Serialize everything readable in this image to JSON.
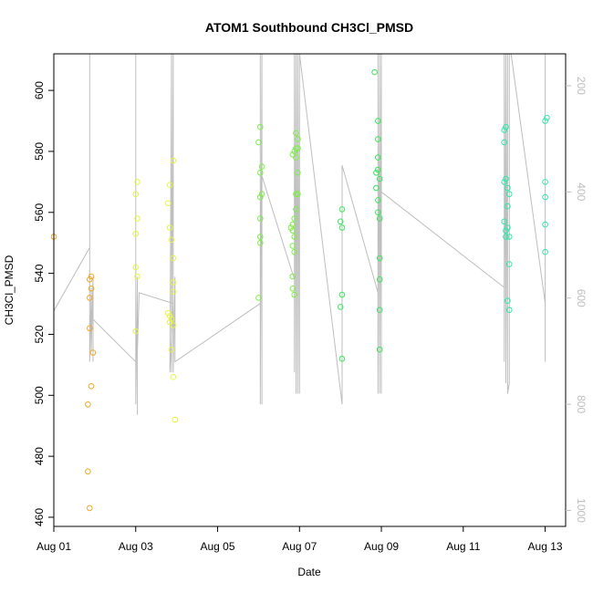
{
  "chart_data": {
    "type": "scatter",
    "title": "ATOM1 Southbound CH3Cl_PMSD",
    "xlabel": "Date",
    "ylabel": "CH3Cl_PMSD",
    "xlim": [
      "2016-08-01T00:00",
      "2016-08-13T12:00"
    ],
    "ylim": [
      457,
      612
    ],
    "y2lim": [
      1030,
      140
    ],
    "x_ticks": [
      {
        "date": "2016-08-01",
        "label": "Aug 01"
      },
      {
        "date": "2016-08-03",
        "label": "Aug 03"
      },
      {
        "date": "2016-08-05",
        "label": "Aug 05"
      },
      {
        "date": "2016-08-07",
        "label": "Aug 07"
      },
      {
        "date": "2016-08-09",
        "label": "Aug 09"
      },
      {
        "date": "2016-08-11",
        "label": "Aug 11"
      },
      {
        "date": "2016-08-13",
        "label": "Aug 13"
      }
    ],
    "y_ticks": [
      460,
      480,
      500,
      520,
      540,
      560,
      580,
      600
    ],
    "y2_ticks": [
      200,
      400,
      600,
      800,
      1000
    ],
    "right_axis_color": "#bebebe",
    "line_color": "#bebebe",
    "grid": false,
    "series": [
      {
        "color": "#f5a623",
        "points": [
          [
            "2016-08-01T00:00",
            552
          ],
          [
            "2016-08-01T21:00",
            538
          ],
          [
            "2016-08-01T22:00",
            539
          ],
          [
            "2016-08-01T22:00",
            535
          ],
          [
            "2016-08-01T21:00",
            532
          ],
          [
            "2016-08-01T21:00",
            522
          ],
          [
            "2016-08-01T23:00",
            514
          ],
          [
            "2016-08-01T22:00",
            503
          ],
          [
            "2016-08-01T20:00",
            497
          ],
          [
            "2016-08-01T20:00",
            475
          ],
          [
            "2016-08-01T21:00",
            463
          ]
        ]
      },
      {
        "color": "#e6f542",
        "points": [
          [
            "2016-08-03T01:00",
            570
          ],
          [
            "2016-08-03T00:00",
            566
          ],
          [
            "2016-08-03T01:00",
            558
          ],
          [
            "2016-08-03T00:00",
            553
          ],
          [
            "2016-08-03T00:00",
            542
          ],
          [
            "2016-08-03T01:00",
            539
          ],
          [
            "2016-08-03T00:00",
            521
          ],
          [
            "2016-08-03T20:00",
            569
          ],
          [
            "2016-08-03T19:00",
            563
          ],
          [
            "2016-08-03T20:00",
            555
          ],
          [
            "2016-08-03T21:00",
            551
          ],
          [
            "2016-08-03T22:00",
            545
          ],
          [
            "2016-08-03T22:00",
            537
          ],
          [
            "2016-08-03T22:00",
            534
          ],
          [
            "2016-08-03T19:00",
            527
          ],
          [
            "2016-08-03T20:00",
            526
          ],
          [
            "2016-08-03T21:00",
            525
          ],
          [
            "2016-08-03T20:00",
            524
          ],
          [
            "2016-08-03T22:00",
            523
          ],
          [
            "2016-08-03T22:00",
            577
          ],
          [
            "2016-08-03T21:00",
            515
          ],
          [
            "2016-08-03T22:00",
            506
          ],
          [
            "2016-08-03T23:00",
            492
          ]
        ]
      },
      {
        "color": "#7dee48",
        "points": [
          [
            "2016-08-06T00:00",
            583
          ],
          [
            "2016-08-06T01:00",
            588
          ],
          [
            "2016-08-06T02:00",
            575
          ],
          [
            "2016-08-06T01:00",
            573
          ],
          [
            "2016-08-06T02:00",
            566
          ],
          [
            "2016-08-06T01:00",
            565
          ],
          [
            "2016-08-06T01:00",
            558
          ],
          [
            "2016-08-06T01:00",
            552
          ],
          [
            "2016-08-06T01:00",
            550
          ],
          [
            "2016-08-06T00:00",
            532
          ],
          [
            "2016-08-06T20:00",
            539
          ],
          [
            "2016-08-06T20:00",
            549
          ],
          [
            "2016-08-06T19:00",
            555
          ],
          [
            "2016-08-06T20:00",
            556
          ],
          [
            "2016-08-06T21:00",
            558
          ],
          [
            "2016-08-06T20:00",
            554
          ],
          [
            "2016-08-06T21:00",
            552
          ],
          [
            "2016-08-06T21:00",
            547
          ],
          [
            "2016-08-06T20:00",
            535
          ],
          [
            "2016-08-06T21:00",
            533
          ],
          [
            "2016-08-06T20:00",
            579
          ],
          [
            "2016-08-06T21:00",
            580
          ],
          [
            "2016-08-06T22:00",
            581
          ],
          [
            "2016-08-06T23:00",
            581
          ],
          [
            "2016-08-06T22:00",
            586
          ],
          [
            "2016-08-06T23:00",
            584
          ],
          [
            "2016-08-06T22:00",
            578
          ],
          [
            "2016-08-06T23:00",
            573
          ],
          [
            "2016-08-06T22:00",
            566
          ],
          [
            "2016-08-06T23:00",
            566
          ],
          [
            "2016-08-06T22:00",
            561
          ]
        ]
      },
      {
        "color": "#39e65b",
        "points": [
          [
            "2016-08-08T01:00",
            561
          ],
          [
            "2016-08-08T00:00",
            557
          ],
          [
            "2016-08-08T01:00",
            555
          ],
          [
            "2016-08-08T01:00",
            533
          ],
          [
            "2016-08-08T00:00",
            529
          ],
          [
            "2016-08-08T01:00",
            512
          ],
          [
            "2016-08-08T20:00",
            606
          ],
          [
            "2016-08-08T22:00",
            590
          ],
          [
            "2016-08-08T22:00",
            584
          ],
          [
            "2016-08-08T22:00",
            578
          ],
          [
            "2016-08-08T22:00",
            574
          ],
          [
            "2016-08-08T21:00",
            573
          ],
          [
            "2016-08-08T23:00",
            571
          ],
          [
            "2016-08-08T21:00",
            568
          ],
          [
            "2016-08-08T22:00",
            564
          ],
          [
            "2016-08-08T22:00",
            560
          ],
          [
            "2016-08-08T23:00",
            558
          ],
          [
            "2016-08-08T23:00",
            545
          ],
          [
            "2016-08-08T23:00",
            538
          ],
          [
            "2016-08-08T23:00",
            528
          ],
          [
            "2016-08-08T23:00",
            515
          ]
        ]
      },
      {
        "color": "#2ee8a8",
        "points": [
          [
            "2016-08-12T00:00",
            587
          ],
          [
            "2016-08-12T01:00",
            588
          ],
          [
            "2016-08-12T00:00",
            583
          ],
          [
            "2016-08-12T00:00",
            570
          ],
          [
            "2016-08-12T01:00",
            571
          ],
          [
            "2016-08-12T02:00",
            568
          ],
          [
            "2016-08-12T03:00",
            566
          ],
          [
            "2016-08-12T02:00",
            562
          ],
          [
            "2016-08-12T00:00",
            557
          ],
          [
            "2016-08-12T02:00",
            555
          ],
          [
            "2016-08-12T01:00",
            554
          ],
          [
            "2016-08-12T01:00",
            552
          ],
          [
            "2016-08-12T03:00",
            552
          ],
          [
            "2016-08-12T03:00",
            543
          ],
          [
            "2016-08-12T02:00",
            531
          ],
          [
            "2016-08-12T03:00",
            528
          ],
          [
            "2016-08-13T00:00",
            590
          ],
          [
            "2016-08-13T01:00",
            591
          ],
          [
            "2016-08-13T00:00",
            570
          ],
          [
            "2016-08-13T00:00",
            565
          ],
          [
            "2016-08-13T00:00",
            556
          ],
          [
            "2016-08-13T00:00",
            547
          ]
        ]
      }
    ],
    "track_lines": [
      [
        [
          "2016-08-01T00:00",
          624
        ],
        [
          "2016-08-01T21:00",
          505
        ],
        [
          "2016-08-01T21:00",
          140
        ],
        [
          "2016-08-01T21:00",
          720
        ],
        [
          "2016-08-01T22:00",
          580
        ],
        [
          "2016-08-01T22:00",
          700
        ],
        [
          "2016-08-01T23:00",
          560
        ],
        [
          "2016-08-01T23:00",
          720
        ],
        [
          "2016-08-01T23:00",
          640
        ],
        [
          "2016-08-03T00:00",
          720
        ],
        [
          "2016-08-03T00:00",
          140
        ],
        [
          "2016-08-03T00:00",
          800
        ],
        [
          "2016-08-03T01:00",
          560
        ],
        [
          "2016-08-03T01:00",
          820
        ],
        [
          "2016-08-03T01:00",
          700
        ],
        [
          "2016-08-03T02:00",
          590
        ],
        [
          "2016-08-03T22:00",
          610
        ],
        [
          "2016-08-03T20:00",
          740
        ],
        [
          "2016-08-03T21:00",
          140
        ],
        [
          "2016-08-03T21:00",
          740
        ],
        [
          "2016-08-03T22:00",
          140
        ],
        [
          "2016-08-03T22:00",
          740
        ],
        [
          "2016-08-03T23:00",
          560
        ],
        [
          "2016-08-03T23:00",
          720
        ],
        [
          "2016-08-06T01:00",
          610
        ],
        [
          "2016-08-06T01:00",
          140
        ],
        [
          "2016-08-06T01:00",
          800
        ],
        [
          "2016-08-06T02:00",
          140
        ],
        [
          "2016-08-06T02:00",
          800
        ],
        [
          "2016-08-06T02:00",
          370
        ],
        [
          "2016-08-06T21:00",
          565
        ],
        [
          "2016-08-06T21:00",
          140
        ],
        [
          "2016-08-06T21:00",
          740
        ],
        [
          "2016-08-06T22:00",
          140
        ],
        [
          "2016-08-06T22:00",
          780
        ],
        [
          "2016-08-06T23:00",
          140
        ],
        [
          "2016-08-06T23:00",
          780
        ],
        [
          "2016-08-06T23:00",
          140
        ],
        [
          "2016-08-07T00:00",
          780
        ],
        [
          "2016-08-07T00:00",
          140
        ],
        [
          "2016-08-08T01:00",
          800
        ],
        [
          "2016-08-08T01:00",
          350
        ],
        [
          "2016-08-08T22:00",
          590
        ],
        [
          "2016-08-08T22:00",
          140
        ],
        [
          "2016-08-08T22:00",
          780
        ],
        [
          "2016-08-08T23:00",
          140
        ],
        [
          "2016-08-08T23:00",
          780
        ],
        [
          "2016-08-09T00:00",
          140
        ],
        [
          "2016-08-09T00:00",
          780
        ],
        [
          "2016-08-09T00:00",
          400
        ],
        [
          "2016-08-12T00:00",
          580
        ],
        [
          "2016-08-12T00:00",
          140
        ],
        [
          "2016-08-12T00:00",
          720
        ],
        [
          "2016-08-12T01:00",
          140
        ],
        [
          "2016-08-12T01:00",
          760
        ],
        [
          "2016-08-12T02:00",
          140
        ],
        [
          "2016-08-12T02:00",
          780
        ],
        [
          "2016-08-12T03:00",
          760
        ],
        [
          "2016-08-12T03:00",
          140
        ],
        [
          "2016-08-12T04:00",
          140
        ],
        [
          "2016-08-13T00:00",
          610
        ],
        [
          "2016-08-13T00:00",
          140
        ],
        [
          "2016-08-13T00:00",
          720
        ],
        [
          "2016-08-13T00:00",
          320
        ]
      ]
    ]
  }
}
